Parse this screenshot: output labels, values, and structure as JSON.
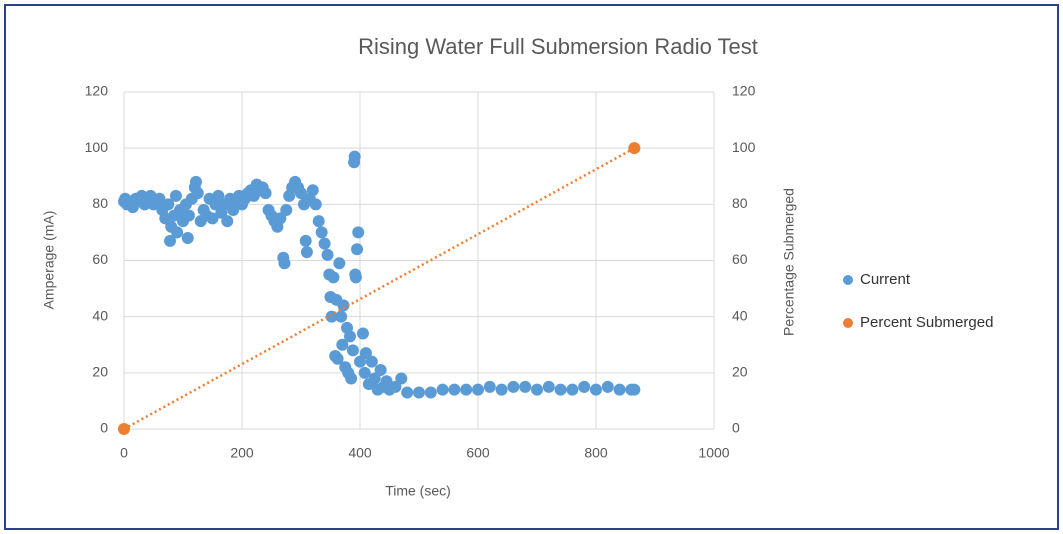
{
  "chart_data": {
    "type": "scatter",
    "title": "Rising Water Full Submersion Radio Test",
    "xlabel": "Time (sec)",
    "ylabel": "Amperage (mA)",
    "y2label": "Percentage Submerged",
    "xlim": [
      0,
      1000
    ],
    "xticks": [
      0,
      200,
      400,
      600,
      800,
      1000
    ],
    "ylim": [
      0,
      120
    ],
    "yticks": [
      0,
      20,
      40,
      60,
      80,
      100,
      120
    ],
    "y2lim": [
      0,
      120
    ],
    "y2ticks": [
      0,
      20,
      40,
      60,
      80,
      100,
      120
    ],
    "grid": true,
    "legend": "right",
    "series": [
      {
        "name": "Current",
        "color": "#5b9bd5",
        "x": [
          0,
          2,
          5,
          10,
          15,
          20,
          25,
          30,
          35,
          40,
          45,
          50,
          55,
          60,
          65,
          70,
          75,
          78,
          80,
          85,
          88,
          90,
          95,
          100,
          105,
          108,
          110,
          115,
          120,
          122,
          125,
          130,
          135,
          140,
          145,
          150,
          155,
          160,
          165,
          170,
          175,
          180,
          185,
          190,
          195,
          200,
          205,
          210,
          215,
          220,
          225,
          230,
          235,
          240,
          245,
          250,
          255,
          260,
          265,
          270,
          272,
          275,
          280,
          285,
          290,
          295,
          300,
          305,
          308,
          310,
          315,
          320,
          325,
          330,
          335,
          340,
          345,
          348,
          350,
          352,
          355,
          358,
          360,
          362,
          365,
          368,
          370,
          372,
          375,
          378,
          380,
          383,
          385,
          388,
          390,
          391,
          392,
          393,
          395,
          397,
          400,
          405,
          408,
          410,
          415,
          420,
          425,
          430,
          435,
          440,
          445,
          450,
          460,
          470,
          480,
          500,
          520,
          540,
          560,
          580,
          600,
          620,
          640,
          660,
          680,
          700,
          720,
          740,
          760,
          780,
          800,
          820,
          840,
          860,
          865
        ],
        "values": [
          81,
          82,
          80,
          81,
          79,
          82,
          81,
          83,
          80,
          82,
          83,
          80,
          81,
          82,
          78,
          75,
          80,
          67,
          72,
          76,
          83,
          70,
          78,
          74,
          80,
          68,
          76,
          82,
          86,
          88,
          84,
          74,
          78,
          76,
          82,
          75,
          80,
          83,
          77,
          80,
          74,
          82,
          78,
          80,
          83,
          80,
          82,
          84,
          85,
          83,
          87,
          85,
          86,
          84,
          78,
          76,
          74,
          72,
          75,
          61,
          59,
          78,
          83,
          86,
          88,
          86,
          84,
          80,
          67,
          63,
          82,
          85,
          80,
          74,
          70,
          66,
          62,
          55,
          47,
          40,
          54,
          26,
          46,
          25,
          59,
          40,
          30,
          44,
          22,
          36,
          20,
          33,
          18,
          28,
          95,
          97,
          55,
          54,
          64,
          70,
          24,
          34,
          20,
          27,
          16,
          24,
          18,
          14,
          21,
          15,
          17,
          14,
          15,
          18,
          13,
          13,
          13,
          14,
          14,
          14,
          14,
          15,
          14,
          15,
          15,
          14,
          15,
          14,
          14,
          15,
          14,
          15,
          14,
          14,
          14
        ]
      },
      {
        "name": "Percent Submerged",
        "color": "#ed7d31",
        "axis": "y2",
        "x": [
          0,
          865
        ],
        "values": [
          0,
          100
        ]
      }
    ]
  }
}
